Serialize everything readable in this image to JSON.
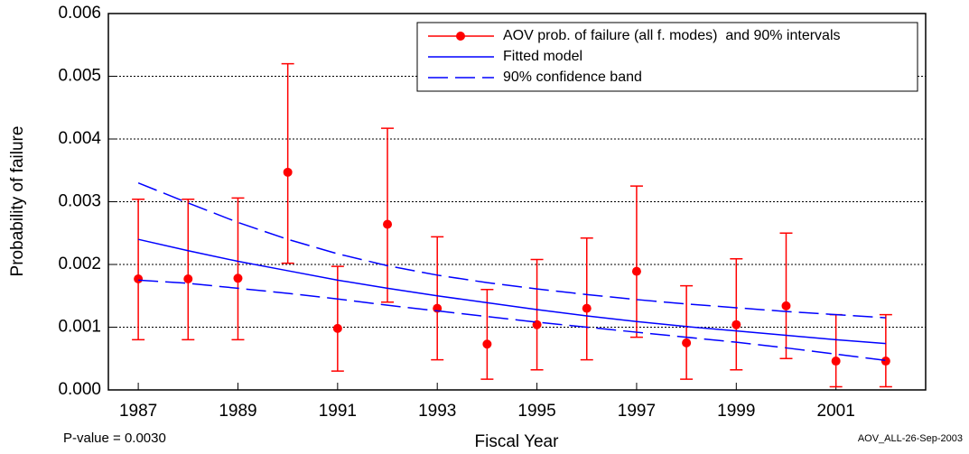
{
  "chart_data": {
    "type": "line",
    "x_label": "Fiscal Year",
    "y_label": "Probability of failure",
    "annotations": [
      "P-value = 0.0030",
      "AOV_ALL-26-Sep-2003"
    ],
    "x": [
      1987,
      1988,
      1989,
      1990,
      1991,
      1992,
      1993,
      1994,
      1995,
      1996,
      1997,
      1998,
      1999,
      2000,
      2001,
      2002
    ],
    "series": [
      {
        "name": "AOV prob. of failure (all f. modes)  and 90% intervals",
        "color": "#ff0000",
        "style": "points-with-intervals",
        "values": [
          0.00177,
          0.00177,
          0.00178,
          0.00347,
          0.00098,
          0.00264,
          0.0013,
          0.00073,
          0.00104,
          0.0013,
          0.00189,
          0.00075,
          0.00104,
          0.00134,
          0.00046,
          0.00046
        ],
        "lower": [
          0.0008,
          0.0008,
          0.0008,
          0.00202,
          0.0003,
          0.0014,
          0.00048,
          0.00017,
          0.00032,
          0.00048,
          0.00084,
          0.00017,
          0.00032,
          0.0005,
          5e-05,
          5e-05
        ],
        "upper": [
          0.00304,
          0.00304,
          0.00306,
          0.0052,
          0.00197,
          0.00417,
          0.00244,
          0.0016,
          0.00208,
          0.00242,
          0.00325,
          0.00166,
          0.00209,
          0.0025,
          0.0012,
          0.0012
        ]
      },
      {
        "name": "Fitted model",
        "color": "#0000ff",
        "style": "solid",
        "values": [
          0.0024,
          0.00222,
          0.00205,
          0.0019,
          0.00175,
          0.00162,
          0.0015,
          0.00139,
          0.00128,
          0.00118,
          0.00109,
          0.00101,
          0.00094,
          0.00087,
          0.0008,
          0.00074
        ]
      },
      {
        "name": "90% confidence band",
        "color": "#0000ff",
        "style": "dashed",
        "upper": [
          0.0033,
          0.00298,
          0.00267,
          0.0024,
          0.00217,
          0.00198,
          0.00183,
          0.00171,
          0.00161,
          0.00152,
          0.00144,
          0.00137,
          0.00131,
          0.00125,
          0.0012,
          0.00115
        ],
        "lower": [
          0.00175,
          0.0017,
          0.00162,
          0.00154,
          0.00145,
          0.00135,
          0.00126,
          0.00117,
          0.00108,
          0.001,
          0.00092,
          0.00084,
          0.00076,
          0.00067,
          0.00057,
          0.00047
        ]
      }
    ],
    "xlim": [
      1986.4,
      2002.8
    ],
    "xticks": [
      1987,
      1989,
      1991,
      1993,
      1995,
      1997,
      1999,
      2001
    ],
    "ylim": [
      0,
      0.006
    ],
    "yticks": [
      {
        "value": 0,
        "label": "0.000"
      },
      {
        "value": 0.001,
        "label": "0.001"
      },
      {
        "value": 0.002,
        "label": "0.002"
      },
      {
        "value": 0.003,
        "label": "0.003"
      },
      {
        "value": 0.004,
        "label": "0.004"
      },
      {
        "value": 0.005,
        "label": "0.005"
      },
      {
        "value": 0.006,
        "label": "0.006"
      }
    ],
    "grid": true,
    "legend": "top-right"
  }
}
